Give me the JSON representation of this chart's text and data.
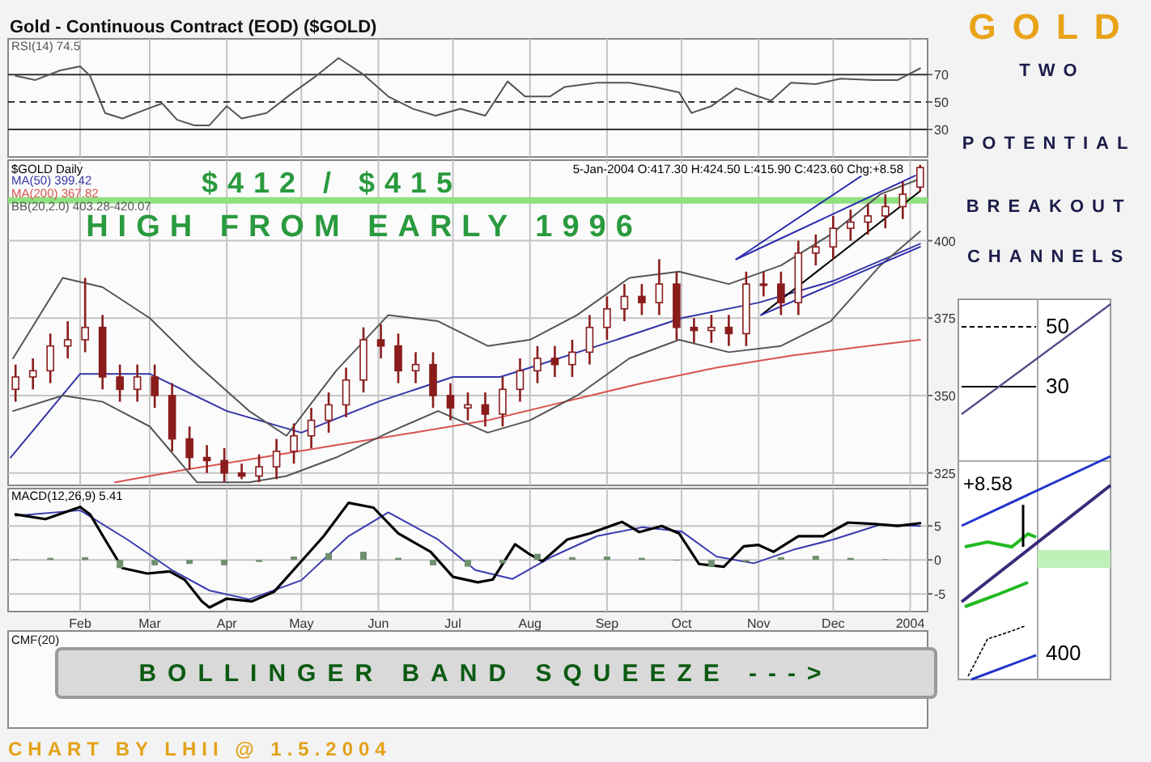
{
  "chart_data": [
    {
      "type": "line",
      "title": "Gold - Continuous Contract (EOD) ($GOLD)",
      "xlim": [
        "2003-01-03",
        "2004-01-08"
      ],
      "ylim": [
        10,
        96
      ],
      "yticks": [
        30,
        50,
        70
      ],
      "tick_labels": "y",
      "grid": "x",
      "legend": "top left",
      "xticks": [
        {
          "value": "2003-02-01",
          "label": null
        },
        {
          "value": "2003-03-01",
          "label": null
        },
        {
          "value": "2003-04-01",
          "label": null
        },
        {
          "value": "2003-05-01",
          "label": null
        },
        {
          "value": "2003-06-01",
          "label": null
        },
        {
          "value": "2003-07-01",
          "label": null
        },
        {
          "value": "2003-08-01",
          "label": null
        },
        {
          "value": "2003-09-01",
          "label": null
        },
        {
          "value": "2003-10-01",
          "label": null
        },
        {
          "value": "2003-11-01",
          "label": null
        },
        {
          "value": "2003-12-01",
          "label": null
        },
        {
          "value": "2004-01-01",
          "label": null
        }
      ],
      "ref_lines": [
        {
          "axis": "y",
          "value": 70,
          "label": null,
          "color": "#333333",
          "line_style": "solid"
        },
        {
          "axis": "y",
          "value": 50,
          "label": null,
          "color": "#333333",
          "line_style": "dashed"
        },
        {
          "axis": "y",
          "value": 30,
          "label": null,
          "color": "#333333",
          "line_style": "solid"
        }
      ],
      "series": [
        {
          "name": "RSI(14) 74.5",
          "color": "#555555",
          "x": [
            "2003-01-06",
            "2003-01-14",
            "2003-01-24",
            "2003-02-01",
            "2003-02-05",
            "2003-02-11",
            "2003-02-18",
            "2003-02-28",
            "2003-03-06",
            "2003-03-12",
            "2003-03-19",
            "2003-03-25",
            "2003-04-01",
            "2003-04-07",
            "2003-04-17",
            "2003-04-27",
            "2003-05-07",
            "2003-05-16",
            "2003-05-26",
            "2003-06-05",
            "2003-06-15",
            "2003-06-24",
            "2003-07-04",
            "2003-07-14",
            "2003-07-23",
            "2003-07-30",
            "2003-08-09",
            "2003-08-15",
            "2003-08-28",
            "2003-09-10",
            "2003-09-20",
            "2003-09-30",
            "2003-10-05",
            "2003-10-13",
            "2003-10-23",
            "2003-11-01",
            "2003-11-06",
            "2003-11-14",
            "2003-11-24",
            "2003-12-04",
            "2003-12-17",
            "2003-12-27",
            "2004-01-05"
          ],
          "values": [
            69,
            66,
            73,
            76,
            69,
            42,
            38,
            45,
            49,
            37,
            33,
            33,
            47,
            38,
            42,
            56,
            69,
            82,
            70,
            54,
            45,
            40,
            45,
            40,
            65,
            54,
            54,
            61,
            64,
            64,
            61,
            57,
            42,
            47,
            60,
            54,
            51,
            64,
            63,
            67,
            66,
            66,
            74.5
          ]
        }
      ]
    },
    {
      "type": "candlestick",
      "xlim": [
        "2003-01-03",
        "2004-01-08"
      ],
      "ylim": [
        321,
        426
      ],
      "yticks": [
        325,
        350,
        375,
        400
      ],
      "tick_labels": "y",
      "grid": true,
      "legend": "top left",
      "color": "#8a1c1c",
      "xticks": [
        {
          "value": "2003-02-01",
          "label": null
        },
        {
          "value": "2003-03-01",
          "label": null
        },
        {
          "value": "2003-04-01",
          "label": null
        },
        {
          "value": "2003-05-01",
          "label": null
        },
        {
          "value": "2003-06-01",
          "label": null
        },
        {
          "value": "2003-07-01",
          "label": null
        },
        {
          "value": "2003-08-01",
          "label": null
        },
        {
          "value": "2003-09-01",
          "label": null
        },
        {
          "value": "2003-10-01",
          "label": null
        },
        {
          "value": "2003-11-01",
          "label": null
        },
        {
          "value": "2003-12-01",
          "label": null
        },
        {
          "value": "2004-01-01",
          "label": null
        }
      ],
      "annotations": [
        "5-Jan-2004 O:417.30 H:424.50 L:415.90 C:423.60 Chg:+8.58",
        "$GOLD Daily",
        "$412 / $415",
        "HIGH FROM EARLY 1996"
      ],
      "ref_lines": [
        {
          "axis": "y",
          "value": 413,
          "label": null,
          "color": "#8fe080"
        }
      ],
      "x": [
        "2003-01-06",
        "2003-01-13",
        "2003-01-20",
        "2003-01-27",
        "2003-02-03",
        "2003-02-10",
        "2003-02-17",
        "2003-02-24",
        "2003-03-03",
        "2003-03-10",
        "2003-03-17",
        "2003-03-24",
        "2003-03-31",
        "2003-04-07",
        "2003-04-14",
        "2003-04-21",
        "2003-04-28",
        "2003-05-05",
        "2003-05-12",
        "2003-05-19",
        "2003-05-26",
        "2003-06-02",
        "2003-06-09",
        "2003-06-16",
        "2003-06-23",
        "2003-06-30",
        "2003-07-07",
        "2003-07-14",
        "2003-07-21",
        "2003-07-28",
        "2003-08-04",
        "2003-08-11",
        "2003-08-18",
        "2003-08-25",
        "2003-09-01",
        "2003-09-08",
        "2003-09-15",
        "2003-09-22",
        "2003-09-29",
        "2003-10-06",
        "2003-10-13",
        "2003-10-20",
        "2003-10-27",
        "2003-11-03",
        "2003-11-10",
        "2003-11-17",
        "2003-11-24",
        "2003-12-01",
        "2003-12-08",
        "2003-12-15",
        "2003-12-22",
        "2003-12-29",
        "2004-01-05"
      ],
      "ohlc": [
        [
          352,
          360,
          348,
          356
        ],
        [
          356,
          362,
          352,
          358
        ],
        [
          358,
          370,
          354,
          366
        ],
        [
          366,
          374,
          362,
          368
        ],
        [
          368,
          388,
          364,
          372
        ],
        [
          372,
          376,
          352,
          356
        ],
        [
          356,
          360,
          348,
          352
        ],
        [
          352,
          360,
          348,
          356
        ],
        [
          356,
          360,
          346,
          350
        ],
        [
          350,
          354,
          332,
          336
        ],
        [
          336,
          340,
          326,
          330
        ],
        [
          330,
          334,
          325,
          329
        ],
        [
          329,
          333,
          322,
          325
        ],
        [
          325,
          328,
          323,
          324
        ],
        [
          324,
          331,
          322,
          327
        ],
        [
          327,
          336,
          323,
          332
        ],
        [
          332,
          341,
          328,
          337
        ],
        [
          337,
          346,
          333,
          342
        ],
        [
          342,
          351,
          338,
          347
        ],
        [
          347,
          359,
          343,
          355
        ],
        [
          355,
          372,
          351,
          368
        ],
        [
          368,
          373,
          362,
          366
        ],
        [
          366,
          370,
          354,
          358
        ],
        [
          358,
          364,
          354,
          360
        ],
        [
          360,
          364,
          346,
          350
        ],
        [
          350,
          354,
          342,
          346
        ],
        [
          346,
          351,
          342,
          347
        ],
        [
          347,
          351,
          340,
          344
        ],
        [
          344,
          356,
          340,
          352
        ],
        [
          352,
          362,
          348,
          358
        ],
        [
          358,
          366,
          354,
          362
        ],
        [
          362,
          366,
          356,
          360
        ],
        [
          360,
          368,
          356,
          364
        ],
        [
          364,
          376,
          360,
          372
        ],
        [
          372,
          382,
          368,
          378
        ],
        [
          378,
          386,
          374,
          382
        ],
        [
          382,
          386,
          376,
          380
        ],
        [
          380,
          394,
          376,
          386
        ],
        [
          386,
          390,
          368,
          372
        ],
        [
          372,
          375,
          367,
          371
        ],
        [
          371,
          376,
          367,
          372
        ],
        [
          372,
          376,
          366,
          370
        ],
        [
          370,
          390,
          366,
          386
        ],
        [
          386,
          390,
          382,
          386
        ],
        [
          386,
          390,
          376,
          380
        ],
        [
          380,
          400,
          376,
          396
        ],
        [
          396,
          402,
          392,
          398
        ],
        [
          398,
          408,
          394,
          404
        ],
        [
          404,
          410,
          400,
          406
        ],
        [
          406,
          412,
          402,
          408
        ],
        [
          408,
          415,
          404,
          411
        ],
        [
          411,
          419,
          407,
          415
        ],
        [
          417.3,
          424.5,
          415.9,
          423.6
        ]
      ],
      "series": [
        {
          "name": "MA(50) 399.42",
          "type": "line",
          "color": "#3535a8",
          "x": [
            "2003-01-04",
            "2003-02-01",
            "2003-03-01",
            "2003-04-01",
            "2003-05-01",
            "2003-06-01",
            "2003-07-01",
            "2003-07-20",
            "2003-08-01",
            "2003-09-01",
            "2003-10-01",
            "2003-11-01",
            "2003-12-01",
            "2004-01-05"
          ],
          "values": [
            330,
            357,
            357,
            345,
            338,
            348,
            356,
            356,
            359,
            367,
            375,
            380,
            387,
            399
          ]
        },
        {
          "name": "MA(200) 367.82",
          "type": "line",
          "color": "#d9534f",
          "x": [
            "2003-02-15",
            "2003-03-15",
            "2003-04-15",
            "2003-05-15",
            "2003-06-15",
            "2003-07-15",
            "2003-08-15",
            "2003-09-15",
            "2003-10-15",
            "2003-11-15",
            "2003-12-15",
            "2004-01-05"
          ],
          "values": [
            322,
            326,
            330,
            334,
            338,
            342,
            348,
            354,
            359,
            363,
            366,
            368
          ]
        },
        {
          "name": "BB(20,2.0) 403.28-420.07",
          "type": "line",
          "color": "#555555",
          "x": [
            "2003-01-05",
            "2003-01-25",
            "2003-02-10",
            "2003-03-01",
            "2003-03-20",
            "2003-04-10",
            "2003-04-25",
            "2003-05-15",
            "2003-06-05",
            "2003-06-25",
            "2003-07-15",
            "2003-08-01",
            "2003-08-20",
            "2003-09-10",
            "2003-09-30",
            "2003-10-20",
            "2003-11-10",
            "2003-11-30",
            "2003-12-20",
            "2004-01-05"
          ],
          "values": [
            362,
            388,
            385,
            375,
            360,
            345,
            337,
            358,
            376,
            374,
            366,
            368,
            376,
            388,
            390,
            386,
            392,
            402,
            415,
            420
          ]
        },
        {
          "type": "line",
          "color": "#555555",
          "x": [
            "2003-01-05",
            "2003-01-25",
            "2003-02-10",
            "2003-03-01",
            "2003-03-20",
            "2003-04-10",
            "2003-04-25",
            "2003-05-15",
            "2003-06-05",
            "2003-06-25",
            "2003-07-15",
            "2003-08-01",
            "2003-08-20",
            "2003-09-10",
            "2003-09-30",
            "2003-10-20",
            "2003-11-10",
            "2003-11-30",
            "2003-12-20",
            "2004-01-05"
          ],
          "values": [
            345,
            350,
            348,
            340,
            322,
            322,
            324,
            330,
            338,
            345,
            338,
            342,
            350,
            362,
            368,
            364,
            366,
            374,
            392,
            403
          ]
        },
        {
          "type": "line",
          "color": "#2b2bb0",
          "x": [
            "2003-10-23",
            "2003-12-20"
          ],
          "values": [
            394,
            425
          ]
        },
        {
          "type": "line",
          "color": "#2b2bb0",
          "x": [
            "2003-10-23",
            "2004-01-03"
          ],
          "values": [
            394,
            421
          ]
        },
        {
          "type": "line",
          "color": "#000000",
          "x": [
            "2003-11-02",
            "2004-01-05"
          ],
          "values": [
            376,
            416
          ]
        },
        {
          "type": "line",
          "color": "#2b2bb0",
          "x": [
            "2003-11-02",
            "2004-01-05"
          ],
          "values": [
            376,
            398
          ]
        }
      ]
    },
    {
      "type": "line",
      "xlim": [
        "2003-01-03",
        "2004-01-08"
      ],
      "ylim": [
        -7.6,
        10.5
      ],
      "yticks": [
        -5,
        0,
        5
      ],
      "grid": true,
      "legend": "top left",
      "xticks": [
        {
          "value": "2003-02-01",
          "label": "Feb"
        },
        {
          "value": "2003-03-01",
          "label": "Mar"
        },
        {
          "value": "2003-04-01",
          "label": "Apr"
        },
        {
          "value": "2003-05-01",
          "label": "May"
        },
        {
          "value": "2003-06-01",
          "label": "Jun"
        },
        {
          "value": "2003-07-01",
          "label": "Jul"
        },
        {
          "value": "2003-08-01",
          "label": "Aug"
        },
        {
          "value": "2003-09-01",
          "label": "Sep"
        },
        {
          "value": "2003-10-01",
          "label": "Oct"
        },
        {
          "value": "2003-11-01",
          "label": "Nov"
        },
        {
          "value": "2003-12-01",
          "label": "Dec"
        },
        {
          "value": "2004-01-01",
          "label": "2004"
        }
      ],
      "series": [
        {
          "type": "bar",
          "color": "#6f8f6f",
          "x": [
            "2003-01-06",
            "2003-01-20",
            "2003-02-03",
            "2003-02-17",
            "2003-03-03",
            "2003-03-17",
            "2003-03-31",
            "2003-04-14",
            "2003-04-28",
            "2003-05-12",
            "2003-05-26",
            "2003-06-09",
            "2003-06-23",
            "2003-07-07",
            "2003-07-21",
            "2003-08-04",
            "2003-08-18",
            "2003-09-01",
            "2003-09-15",
            "2003-09-29",
            "2003-10-13",
            "2003-10-27",
            "2003-11-10",
            "2003-11-24",
            "2003-12-08",
            "2003-12-22"
          ],
          "values": [
            0.1,
            0.3,
            0.4,
            -1.2,
            -0.8,
            -0.6,
            -0.8,
            -0.3,
            0.5,
            1.0,
            1.2,
            0.3,
            -0.8,
            -1.0,
            -0.5,
            0.9,
            0.4,
            0.5,
            0.3,
            -0.1,
            -1.0,
            -0.3,
            0.4,
            0.6,
            0.3,
            0.1
          ]
        },
        {
          "type": "line",
          "color": "#3a3ab0",
          "x": [
            "2003-01-06",
            "2003-02-01",
            "2003-02-20",
            "2003-03-10",
            "2003-03-25",
            "2003-04-10",
            "2003-05-01",
            "2003-05-20",
            "2003-06-05",
            "2003-06-25",
            "2003-07-10",
            "2003-07-25",
            "2003-08-10",
            "2003-08-28",
            "2003-09-15",
            "2003-10-01",
            "2003-10-15",
            "2003-10-30",
            "2003-11-15",
            "2003-12-01",
            "2003-12-20",
            "2004-01-05"
          ],
          "values": [
            6.5,
            7.3,
            3.0,
            -1.5,
            -4.5,
            -5.8,
            -3.0,
            3.5,
            7.0,
            3.0,
            -1.5,
            -2.8,
            0.5,
            3.5,
            4.8,
            4.2,
            0.5,
            -0.5,
            1.5,
            3.0,
            5.2,
            5.0
          ]
        },
        {
          "name": "MACD(12,26,9) 5.41",
          "type": "line",
          "color": "#000000",
          "x": [
            "2003-01-06",
            "2003-01-18",
            "2003-02-01",
            "2003-02-05",
            "2003-02-11",
            "2003-02-18",
            "2003-02-28",
            "2003-03-09",
            "2003-03-15",
            "2003-03-22",
            "2003-03-25",
            "2003-04-01",
            "2003-04-11",
            "2003-04-20",
            "2003-04-30",
            "2003-05-10",
            "2003-05-20",
            "2003-05-30",
            "2003-06-09",
            "2003-06-22",
            "2003-07-01",
            "2003-07-11",
            "2003-07-17",
            "2003-07-26",
            "2003-08-01",
            "2003-08-06",
            "2003-08-16",
            "2003-08-25",
            "2003-09-07",
            "2003-09-14",
            "2003-09-23",
            "2003-09-30",
            "2003-10-08",
            "2003-10-18",
            "2003-10-26",
            "2003-11-01",
            "2003-11-07",
            "2003-11-17",
            "2003-11-27",
            "2003-12-07",
            "2003-12-17",
            "2003-12-27",
            "2004-01-05"
          ],
          "values": [
            6.7,
            6.0,
            7.8,
            6.7,
            3.0,
            -1.2,
            -2.0,
            -1.7,
            -2.9,
            -6.1,
            -7.0,
            -5.7,
            -6.1,
            -4.7,
            -0.6,
            3.5,
            8.4,
            7.7,
            3.9,
            1.2,
            -2.5,
            -3.3,
            -2.9,
            2.3,
            0.8,
            -0.2,
            3.0,
            3.9,
            5.6,
            4.1,
            5.0,
            3.9,
            -0.6,
            -1.0,
            2.0,
            2.2,
            1.2,
            3.5,
            3.5,
            5.5,
            5.3,
            5.0,
            5.41
          ]
        }
      ]
    },
    {
      "type": "other",
      "title": "CMF(20)",
      "annotations": [
        "BOLLINGER BAND SQUEEZE --->",
        "CHART BY LHII @ 1.5.2004"
      ]
    },
    {
      "type": "other",
      "annotations": [
        "GOLD",
        "TWO",
        "POTENTIAL",
        "BREAKOUT",
        "CHANNELS",
        "50",
        "30",
        "+8.58",
        "400"
      ]
    }
  ]
}
